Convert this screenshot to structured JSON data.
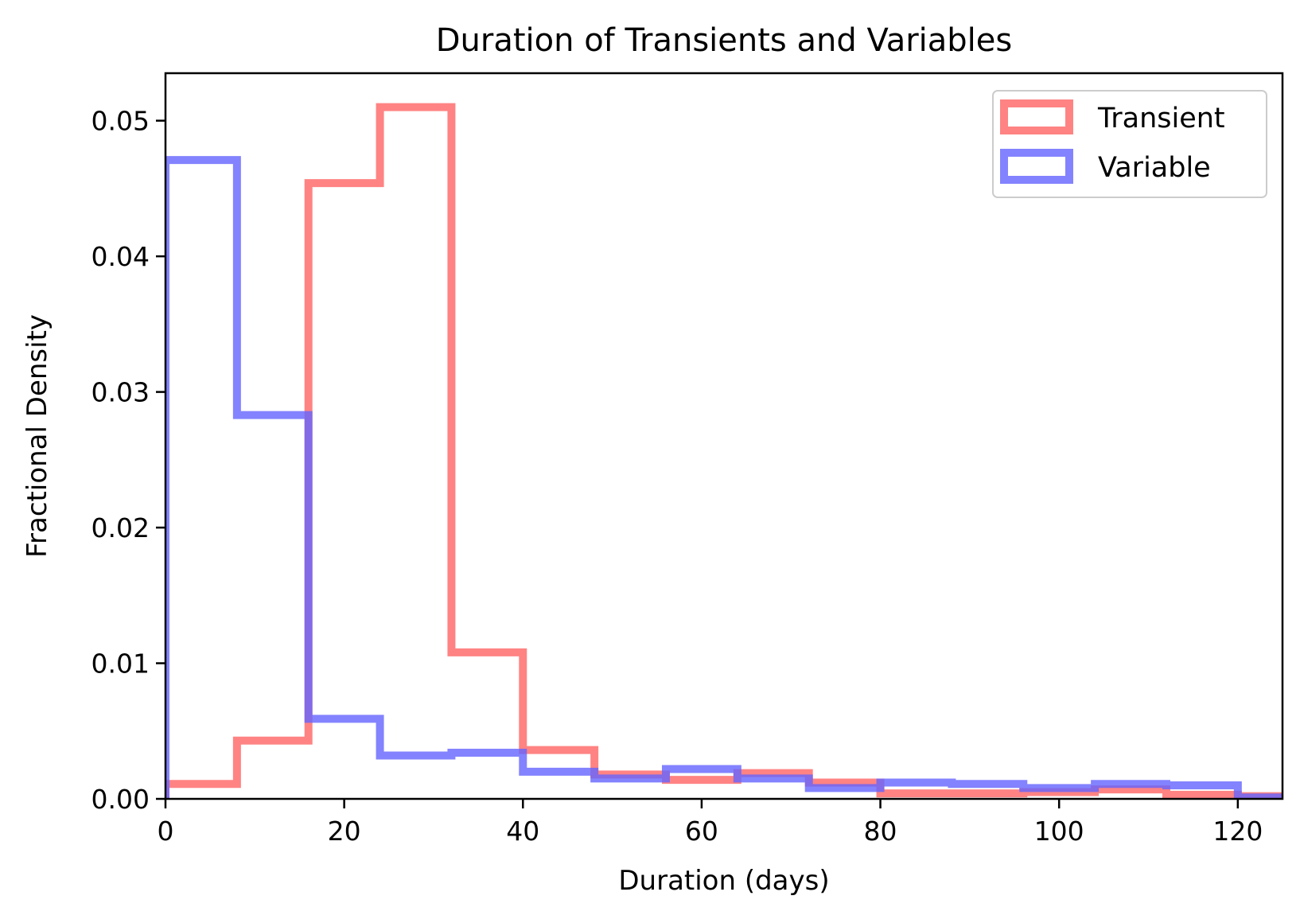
{
  "chart_data": {
    "type": "histogram",
    "title": "Duration of Transients and Variables",
    "xlabel": "Duration (days)",
    "ylabel": "Fractional Density",
    "xlim": [
      0,
      125
    ],
    "ylim": [
      0,
      0.0535
    ],
    "xticks": [
      0,
      20,
      40,
      60,
      80,
      100,
      120
    ],
    "xtick_labels": [
      "0",
      "20",
      "40",
      "60",
      "80",
      "100",
      "120"
    ],
    "yticks": [
      0,
      0.01,
      0.02,
      0.03,
      0.04,
      0.05
    ],
    "ytick_labels": [
      "0.00",
      "0.01",
      "0.02",
      "0.03",
      "0.04",
      "0.05"
    ],
    "grid": false,
    "legend_position": "top-right",
    "bin_edges": [
      0,
      8,
      16,
      24,
      32,
      40,
      48,
      56,
      64,
      72,
      80,
      88,
      96,
      104,
      112,
      120,
      128
    ],
    "series": [
      {
        "name": "Transient",
        "color": "#ff6464",
        "opacity": 0.8,
        "values": [
          0.0011,
          0.0043,
          0.0454,
          0.051,
          0.0108,
          0.0036,
          0.0018,
          0.0014,
          0.0019,
          0.0012,
          0.0004,
          0.0004,
          0.0005,
          0.0007,
          0.0003,
          0.0002
        ]
      },
      {
        "name": "Variable",
        "color": "#6464ff",
        "opacity": 0.8,
        "values": [
          0.0471,
          0.0283,
          0.0059,
          0.0032,
          0.0034,
          0.002,
          0.0015,
          0.0022,
          0.0015,
          0.0008,
          0.0012,
          0.0011,
          0.0008,
          0.0011,
          0.001,
          0.0001
        ]
      }
    ]
  }
}
